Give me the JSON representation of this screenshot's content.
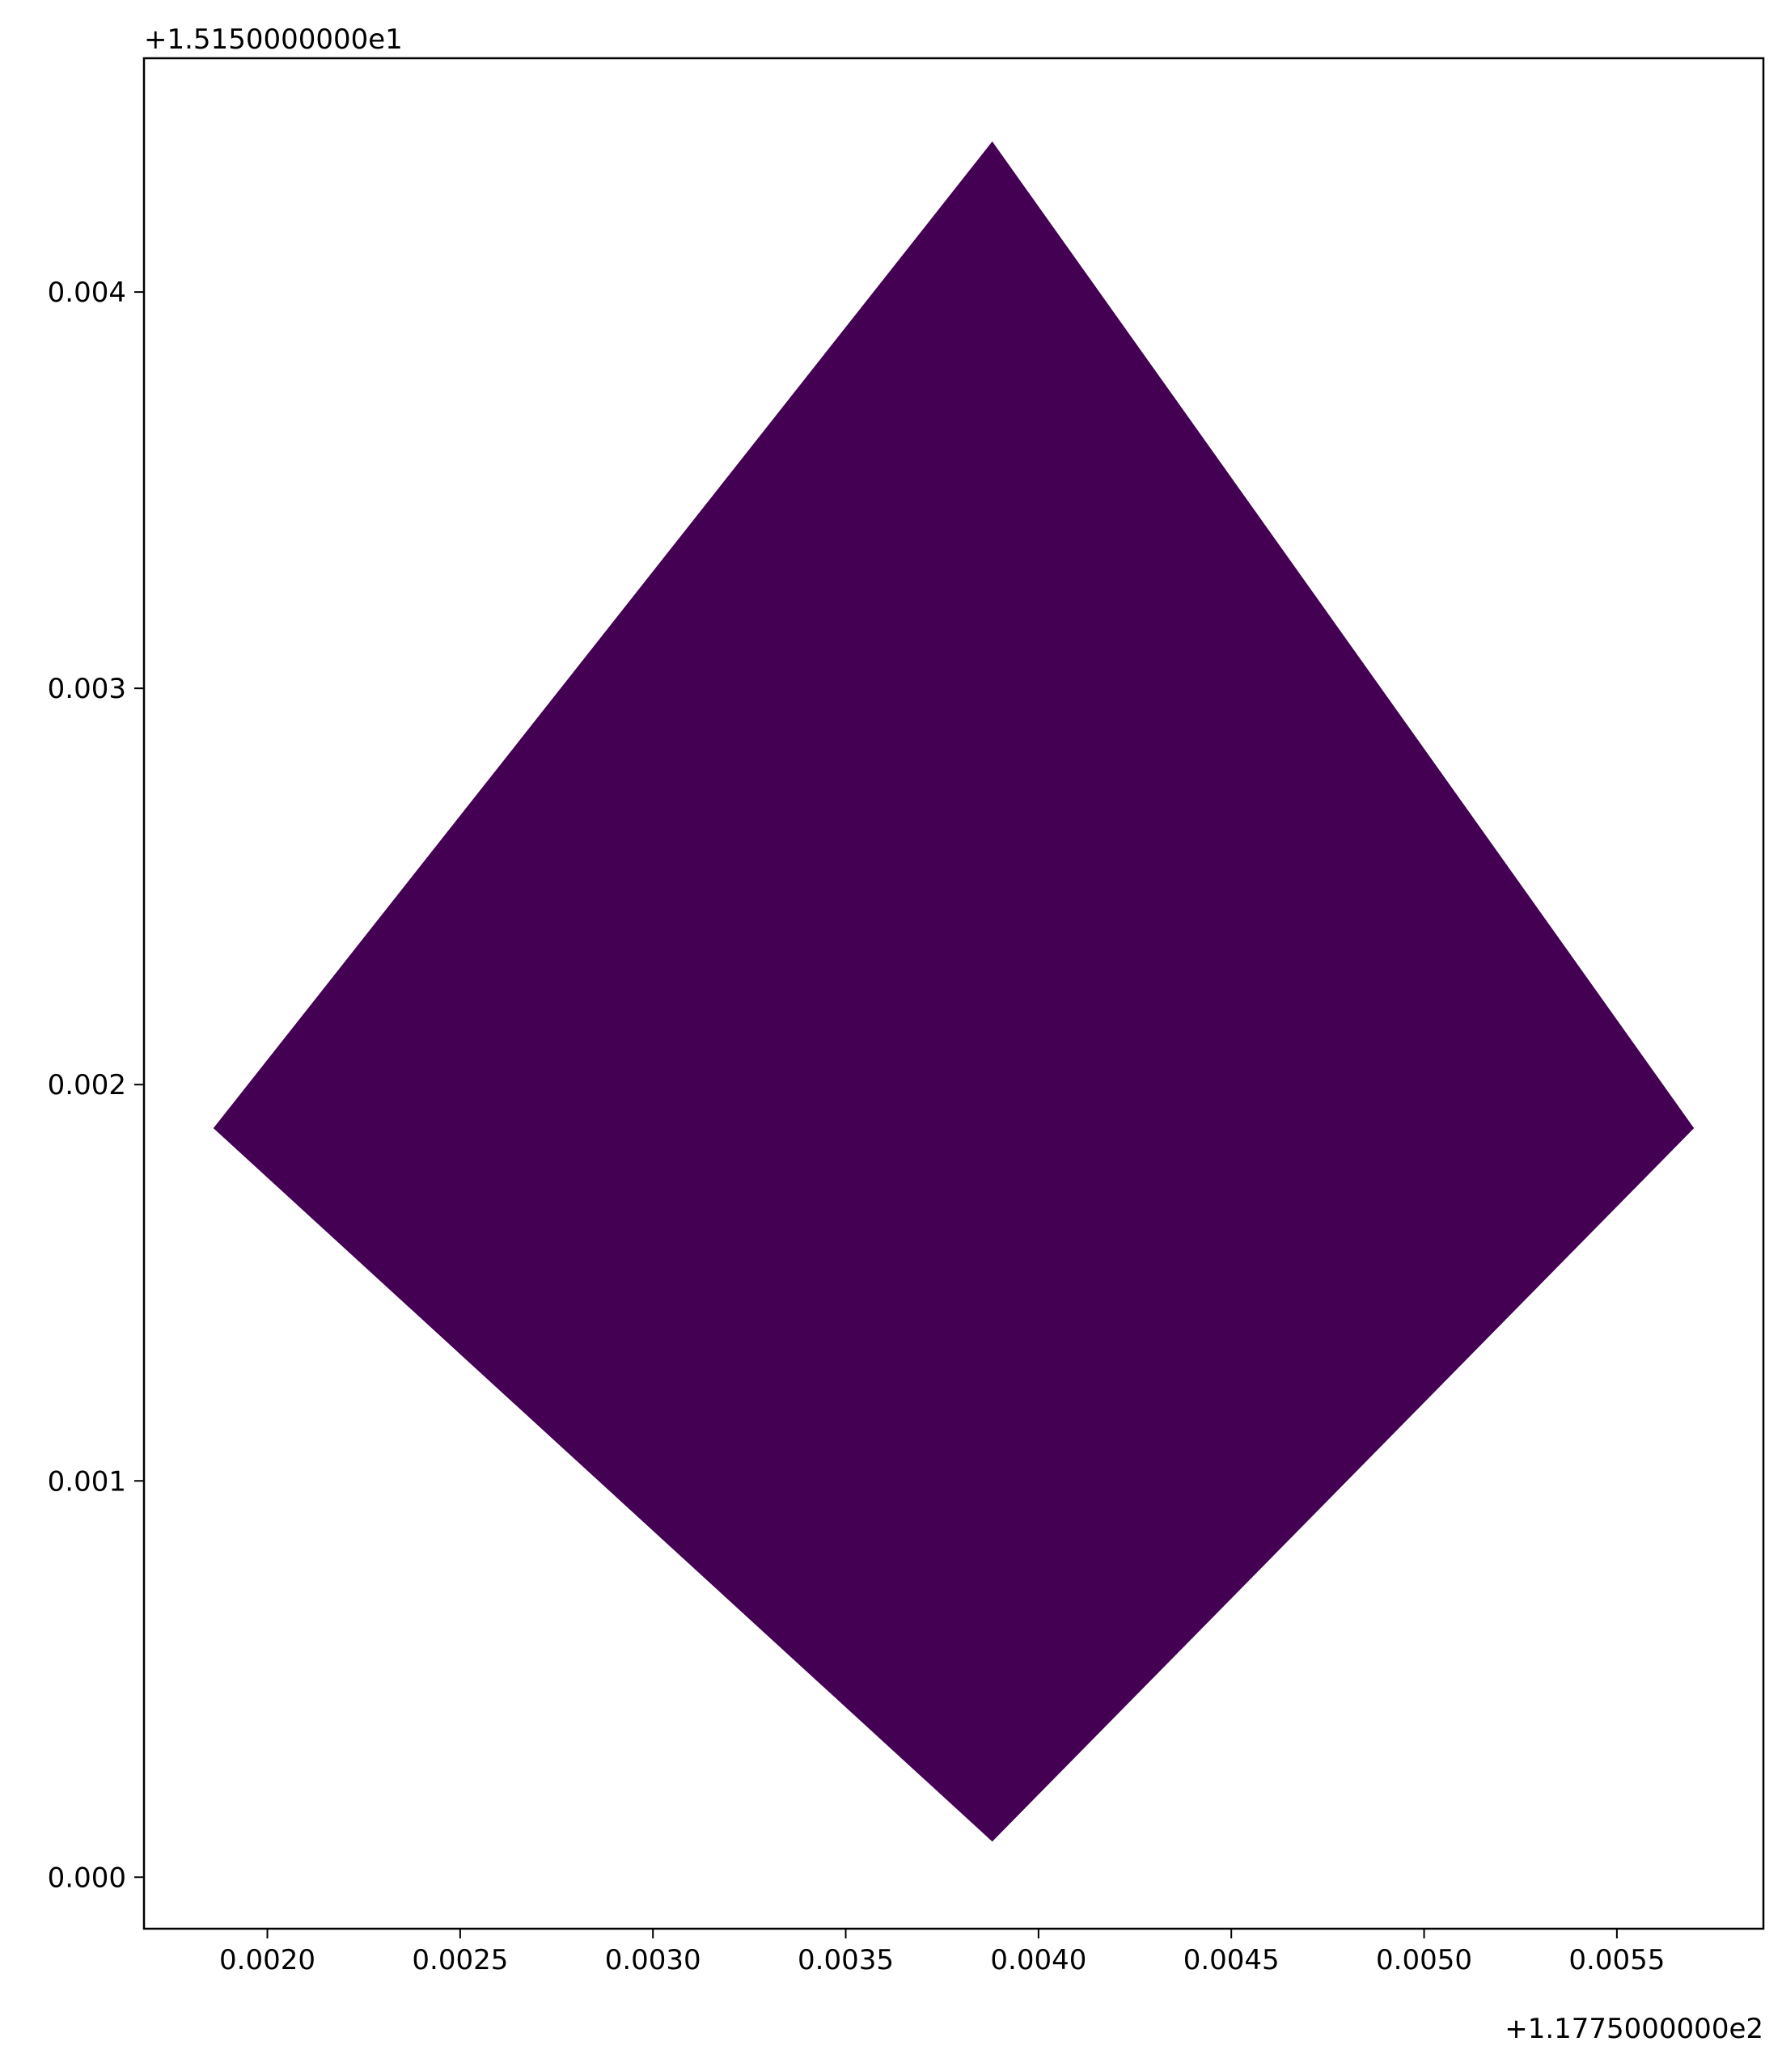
{
  "chart_data": {
    "type": "area",
    "title": "",
    "xlabel": "",
    "ylabel": "",
    "x_offset_label": "+1.1775000000e2",
    "y_offset_label": "+1.5150000000e1",
    "xlim": [
      0.00168,
      0.00588
    ],
    "ylim": [
      -0.00013,
      0.00459
    ],
    "x_ticks": [
      {
        "value": 0.002,
        "label": "0.0020"
      },
      {
        "value": 0.0025,
        "label": "0.0025"
      },
      {
        "value": 0.003,
        "label": "0.0030"
      },
      {
        "value": 0.0035,
        "label": "0.0035"
      },
      {
        "value": 0.004,
        "label": "0.0040"
      },
      {
        "value": 0.0045,
        "label": "0.0045"
      },
      {
        "value": 0.005,
        "label": "0.0050"
      },
      {
        "value": 0.0055,
        "label": "0.0055"
      }
    ],
    "y_ticks": [
      {
        "value": 0.0,
        "label": "0.000"
      },
      {
        "value": 0.001,
        "label": "0.001"
      },
      {
        "value": 0.002,
        "label": "0.002"
      },
      {
        "value": 0.003,
        "label": "0.003"
      },
      {
        "value": 0.004,
        "label": "0.004"
      }
    ],
    "grid": false,
    "series": [
      {
        "color": "#440154",
        "points": [
          {
            "x": 0.00388,
            "y": 0.00438
          },
          {
            "x": 0.0057,
            "y": 0.00189
          },
          {
            "x": 0.00388,
            "y": 9e-05
          },
          {
            "x": 0.00186,
            "y": 0.00189
          }
        ]
      }
    ]
  }
}
